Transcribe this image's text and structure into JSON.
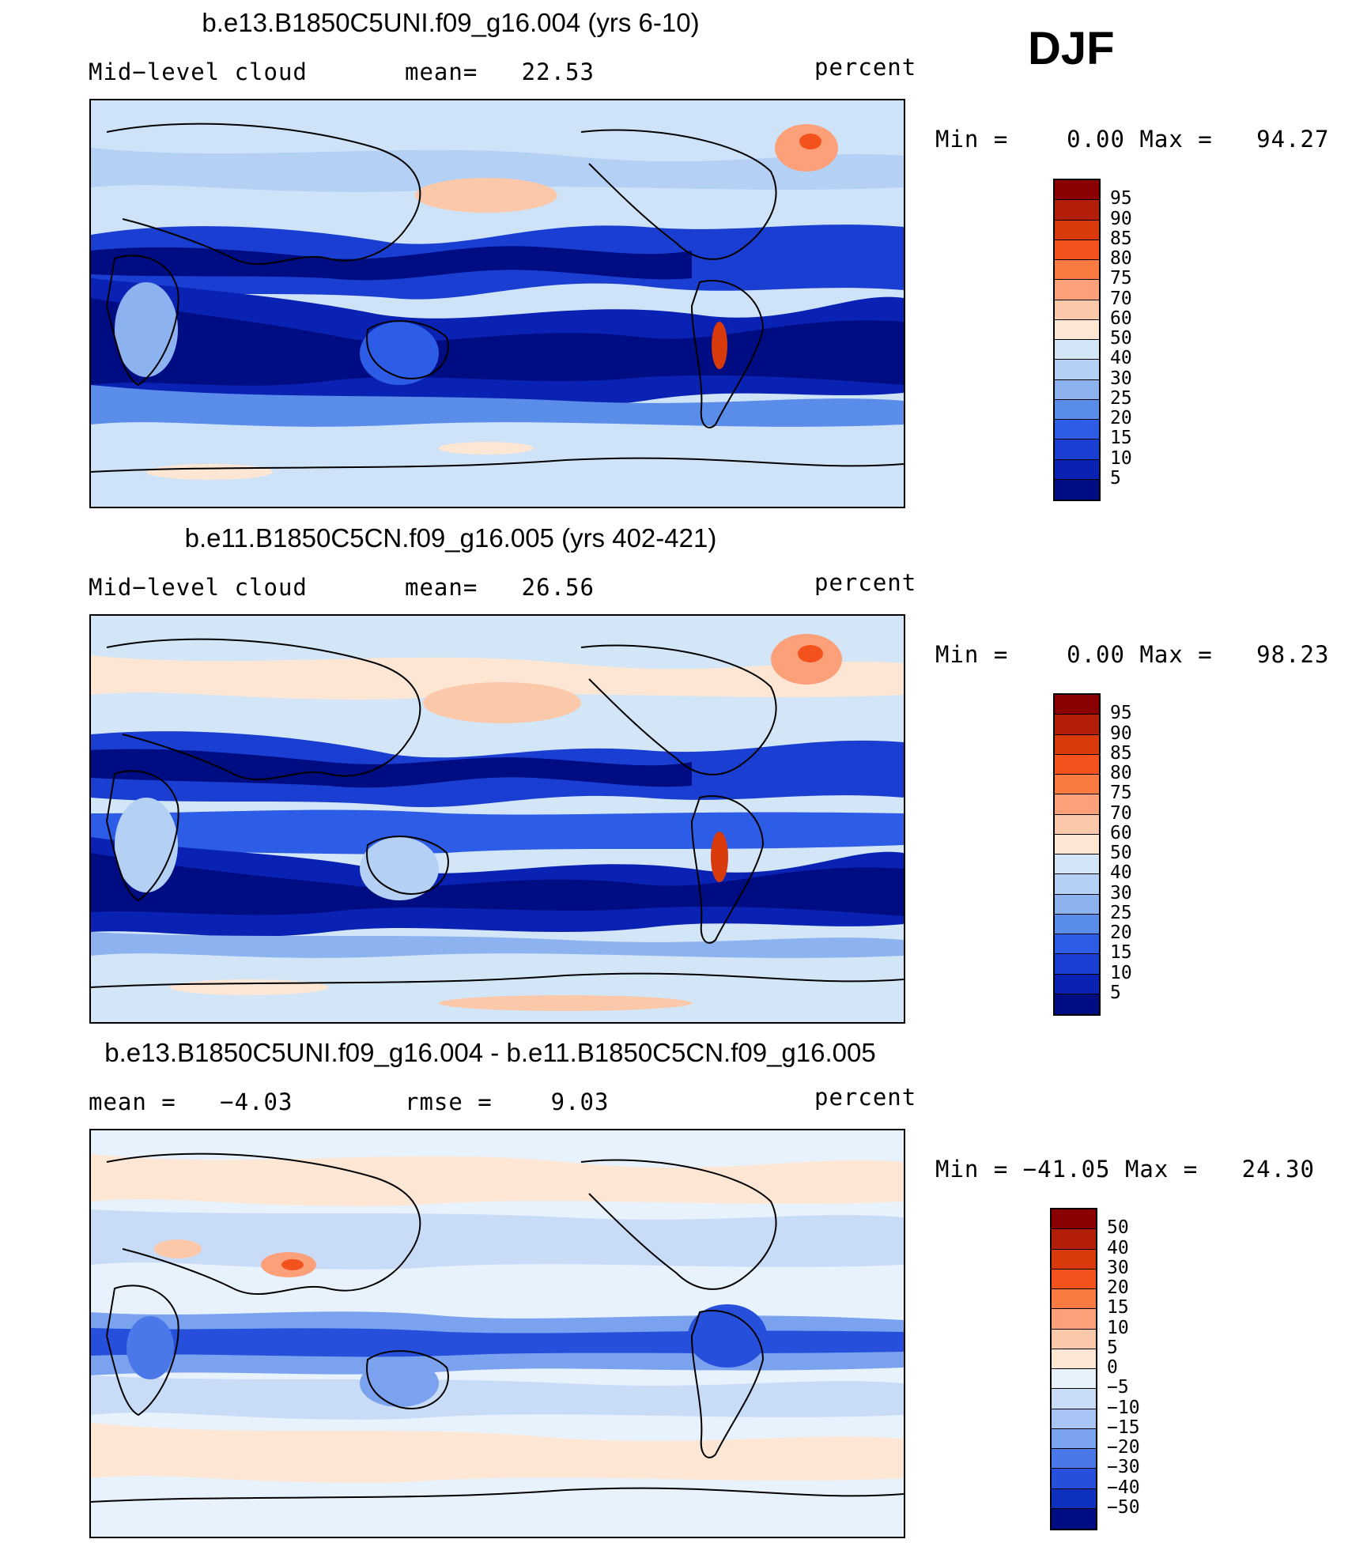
{
  "season": "DJF",
  "panels": [
    {
      "title": "b.e13.B1850C5UNI.f09_g16.004 (yrs 6-10)",
      "left_label": "Mid−level cloud",
      "middle_label": "mean=   22.53",
      "units": "percent",
      "minmax": "Min =    0.00 Max =   94.27",
      "colorbar": {
        "labels": [
          "95",
          "90",
          "85",
          "80",
          "75",
          "70",
          "60",
          "50",
          "40",
          "30",
          "25",
          "20",
          "15",
          "10",
          "5"
        ],
        "colors": [
          "#8b0000",
          "#b21e07",
          "#d93a0c",
          "#f4521c",
          "#fb7a42",
          "#fca07a",
          "#fcc8aa",
          "#fde6d4",
          "#d2e6f8",
          "#b4d0f4",
          "#8cb2f0",
          "#5a8cea",
          "#2d5ce6",
          "#1a3ed2",
          "#0a22b4",
          "#000c82"
        ]
      }
    },
    {
      "title": "b.e11.B1850C5CN.f09_g16.005 (yrs 402-421)",
      "left_label": "Mid−level cloud",
      "middle_label": "mean=   26.56",
      "units": "percent",
      "minmax": "Min =    0.00 Max =   98.23",
      "colorbar": {
        "labels": [
          "95",
          "90",
          "85",
          "80",
          "75",
          "70",
          "60",
          "50",
          "40",
          "30",
          "25",
          "20",
          "15",
          "10",
          "5"
        ],
        "colors": [
          "#8b0000",
          "#b21e07",
          "#d93a0c",
          "#f4521c",
          "#fb7a42",
          "#fca07a",
          "#fcc8aa",
          "#fde6d4",
          "#d2e6f8",
          "#b4d0f4",
          "#8cb2f0",
          "#5a8cea",
          "#2d5ce6",
          "#1a3ed2",
          "#0a22b4",
          "#000c82"
        ]
      }
    },
    {
      "title": "b.e13.B1850C5UNI.f09_g16.004 - b.e11.B1850C5CN.f09_g16.005",
      "left_label": "mean =   −4.03",
      "middle_label": "rmse =    9.03",
      "units": "percent",
      "minmax": "Min = −41.05 Max =   24.30",
      "colorbar": {
        "labels": [
          "50",
          "40",
          "30",
          "20",
          "15",
          "10",
          "5",
          "0",
          "−5",
          "−10",
          "−15",
          "−20",
          "−30",
          "−40",
          "−50"
        ],
        "colors": [
          "#8b0000",
          "#b21e07",
          "#d93a0c",
          "#f4521c",
          "#fb7a42",
          "#fca07a",
          "#fcc8aa",
          "#fde6d4",
          "#e8f2fc",
          "#c8dcf8",
          "#a8c4f4",
          "#7aa2ee",
          "#4a78e8",
          "#2650dc",
          "#0e30be",
          "#000c82"
        ]
      }
    }
  ],
  "chart_data": [
    {
      "type": "heatmap",
      "title": "b.e13.B1850C5UNI.f09_g16.004 (yrs 6-10)",
      "variable": "Mid−level cloud",
      "units": "percent",
      "mean": 22.53,
      "min": 0.0,
      "max": 94.27,
      "levels": [
        5,
        10,
        15,
        20,
        25,
        30,
        40,
        50,
        60,
        70,
        75,
        80,
        85,
        90,
        95
      ]
    },
    {
      "type": "heatmap",
      "title": "b.e11.B1850C5CN.f09_g16.005 (yrs 402-421)",
      "variable": "Mid−level cloud",
      "units": "percent",
      "mean": 26.56,
      "min": 0.0,
      "max": 98.23,
      "levels": [
        5,
        10,
        15,
        20,
        25,
        30,
        40,
        50,
        60,
        70,
        75,
        80,
        85,
        90,
        95
      ]
    },
    {
      "type": "heatmap",
      "title": "b.e13.B1850C5UNI.f09_g16.004 - b.e11.B1850C5CN.f09_g16.005",
      "units": "percent",
      "mean": -4.03,
      "rmse": 9.03,
      "min": -41.05,
      "max": 24.3,
      "levels": [
        -50,
        -40,
        -30,
        -20,
        -15,
        -10,
        -5,
        0,
        5,
        10,
        15,
        20,
        30,
        40,
        50
      ]
    }
  ]
}
